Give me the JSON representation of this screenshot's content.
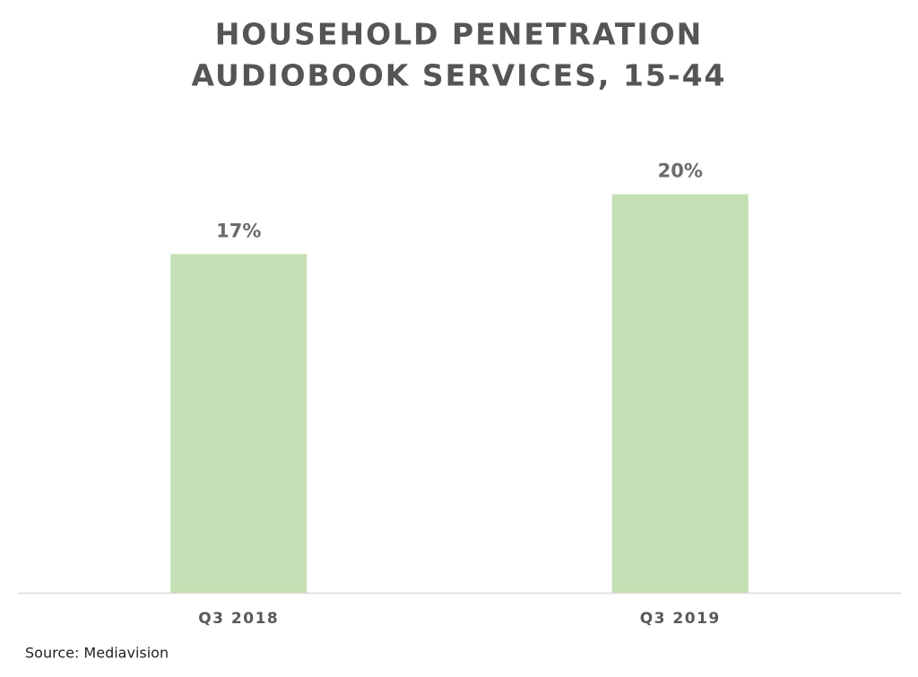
{
  "chart_data": {
    "type": "bar",
    "title": "HOUSEHOLD PENETRATION",
    "subtitle": "AUDIOBOOK SERVICES, 15-44",
    "categories": [
      "Q3 2018",
      "Q3 2019"
    ],
    "values": [
      17,
      20
    ],
    "value_labels": [
      "17%",
      "20%"
    ],
    "color": "#c5e0b4",
    "ylim": [
      0,
      23
    ],
    "source": "Source: Mediavision"
  }
}
